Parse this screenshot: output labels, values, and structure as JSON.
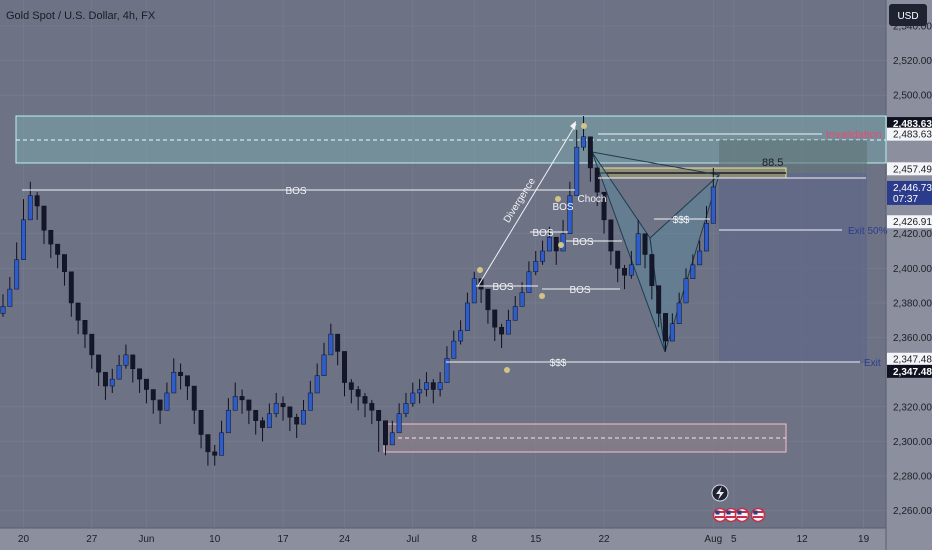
{
  "header": {
    "title": "Gold Spot / U.S. Dollar, 4h, FX"
  },
  "axis": {
    "currency": "USD"
  },
  "chart_data": {
    "type": "candlestick",
    "title": "Gold Spot / U.S. Dollar, 4h, FX",
    "ylim": [
      2250,
      2555
    ],
    "y_ticks": [
      {
        "v": 2540,
        "label": "2,540.00"
      },
      {
        "v": 2520,
        "label": "2,520.00"
      },
      {
        "v": 2500,
        "label": "2,500.00"
      },
      {
        "v": 2420,
        "label": "2,420.00"
      },
      {
        "v": 2400,
        "label": "2,400.00"
      },
      {
        "v": 2380,
        "label": "2,380.00"
      },
      {
        "v": 2360,
        "label": "2,360.00"
      },
      {
        "v": 2320,
        "label": "2,320.00"
      },
      {
        "v": 2300,
        "label": "2,300.00"
      },
      {
        "v": 2280,
        "label": "2,280.00"
      },
      {
        "v": 2260,
        "label": "2,260.00"
      }
    ],
    "x_ticks": [
      {
        "i": 3,
        "label": "20"
      },
      {
        "i": 13,
        "label": "27"
      },
      {
        "i": 21,
        "label": "Jun"
      },
      {
        "i": 31,
        "label": "10"
      },
      {
        "i": 41,
        "label": "17"
      },
      {
        "i": 50,
        "label": "24"
      },
      {
        "i": 60,
        "label": "Jul"
      },
      {
        "i": 69,
        "label": "8"
      },
      {
        "i": 78,
        "label": "15"
      },
      {
        "i": 88,
        "label": "22"
      },
      {
        "i": 104,
        "label": "Aug"
      },
      {
        "i": 107,
        "label": "5"
      },
      {
        "i": 117,
        "label": "12"
      },
      {
        "i": 126,
        "label": "19"
      }
    ],
    "price_tags": [
      {
        "v": 2483.63,
        "label": "2,483.63",
        "style": "dark"
      },
      {
        "v": 2477.5,
        "label": "2,483.63",
        "style": "light"
      },
      {
        "v": 2457.49,
        "label": "2,457.49",
        "style": "light"
      },
      {
        "v": 2446.73,
        "label": "2,446.73",
        "sub": "07:37",
        "style": "current"
      },
      {
        "v": 2426.91,
        "label": "2,426.91",
        "style": "light"
      },
      {
        "v": 2347.48,
        "label": "2,347.48",
        "style": "light"
      },
      {
        "v": 2340.5,
        "label": "2,347.48",
        "style": "dark"
      }
    ],
    "annotations": {
      "bos": "BOS",
      "choch": "Choch",
      "liquidity": "$$$",
      "divergence": "Divergence",
      "invalidation": "Invalidation",
      "fib": "88.5",
      "exit_50": "Exit 50%",
      "exit": "Exit"
    },
    "closes": [
      2378,
      2388,
      2405,
      2428,
      2442,
      2436,
      2422,
      2414,
      2408,
      2398,
      2380,
      2370,
      2362,
      2350,
      2340,
      2332,
      2336,
      2344,
      2350,
      2342,
      2336,
      2330,
      2324,
      2318,
      2328,
      2340,
      2338,
      2332,
      2318,
      2304,
      2294,
      2292,
      2305,
      2318,
      2326,
      2324,
      2318,
      2312,
      2308,
      2316,
      2322,
      2320,
      2314,
      2310,
      2318,
      2328,
      2338,
      2350,
      2362,
      2352,
      2334,
      2330,
      2326,
      2322,
      2318,
      2312,
      2298,
      2305,
      2316,
      2322,
      2328,
      2330,
      2334,
      2330,
      2334,
      2348,
      2358,
      2364,
      2380,
      2394,
      2388,
      2376,
      2366,
      2362,
      2370,
      2378,
      2386,
      2398,
      2404,
      2410,
      2418,
      2410,
      2420,
      2442,
      2470,
      2476,
      2458,
      2444,
      2428,
      2410,
      2400,
      2396,
      2402,
      2420,
      2408,
      2390,
      2374,
      2358,
      2368,
      2380,
      2394,
      2402,
      2410,
      2426,
      2447
    ],
    "highs": [
      2385,
      2395,
      2415,
      2440,
      2450,
      2444,
      2430,
      2420,
      2414,
      2404,
      2386,
      2375,
      2368,
      2356,
      2346,
      2338,
      2342,
      2350,
      2356,
      2348,
      2342,
      2336,
      2330,
      2324,
      2334,
      2348,
      2345,
      2338,
      2325,
      2310,
      2300,
      2298,
      2312,
      2325,
      2334,
      2330,
      2324,
      2318,
      2314,
      2322,
      2328,
      2326,
      2320,
      2316,
      2324,
      2335,
      2345,
      2357,
      2368,
      2358,
      2340,
      2336,
      2332,
      2328,
      2324,
      2318,
      2306,
      2312,
      2322,
      2328,
      2334,
      2336,
      2340,
      2336,
      2340,
      2355,
      2364,
      2370,
      2386,
      2398,
      2394,
      2382,
      2372,
      2368,
      2376,
      2384,
      2392,
      2404,
      2410,
      2416,
      2424,
      2416,
      2428,
      2450,
      2480,
      2488,
      2466,
      2450,
      2434,
      2416,
      2406,
      2402,
      2410,
      2428,
      2414,
      2396,
      2380,
      2364,
      2374,
      2386,
      2400,
      2408,
      2416,
      2436,
      2458
    ],
    "lows": [
      2372,
      2382,
      2400,
      2422,
      2434,
      2428,
      2414,
      2406,
      2400,
      2390,
      2372,
      2362,
      2354,
      2342,
      2332,
      2324,
      2328,
      2336,
      2342,
      2334,
      2328,
      2322,
      2316,
      2310,
      2320,
      2332,
      2330,
      2324,
      2310,
      2296,
      2286,
      2286,
      2298,
      2310,
      2318,
      2316,
      2310,
      2304,
      2300,
      2308,
      2314,
      2312,
      2306,
      2302,
      2310,
      2320,
      2330,
      2342,
      2354,
      2344,
      2326,
      2322,
      2318,
      2314,
      2310,
      2294,
      2292,
      2298,
      2308,
      2314,
      2320,
      2322,
      2326,
      2322,
      2326,
      2340,
      2350,
      2356,
      2372,
      2386,
      2380,
      2368,
      2358,
      2354,
      2362,
      2370,
      2378,
      2390,
      2396,
      2402,
      2410,
      2402,
      2412,
      2434,
      2462,
      2468,
      2450,
      2436,
      2420,
      2402,
      2392,
      2388,
      2394,
      2412,
      2400,
      2382,
      2366,
      2352,
      2360,
      2372,
      2386,
      2394,
      2402,
      2418,
      2436
    ]
  }
}
